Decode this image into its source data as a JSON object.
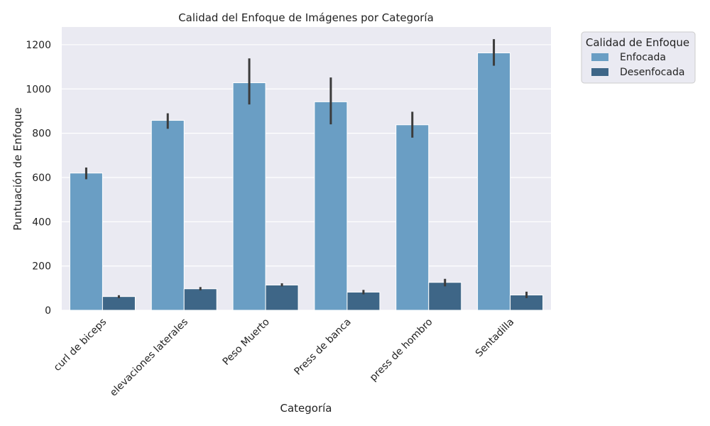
{
  "chart_data": {
    "type": "bar",
    "title": "Calidad del Enfoque de Imágenes por Categoría",
    "xlabel": "Categoría",
    "ylabel": "Puntuación de Enfoque",
    "categories": [
      "curl de biceps",
      "elevaciones laterales",
      "Peso Muerto",
      "Press de banca",
      "press de hombro",
      "Sentadilla"
    ],
    "ylim": [
      0,
      1280
    ],
    "yticks": [
      0,
      200,
      400,
      600,
      800,
      1000,
      1200
    ],
    "grid": true,
    "legend": {
      "title": "Calidad de Enfoque",
      "placement": "outside-top-right"
    },
    "series": [
      {
        "name": "Enfocada",
        "color": "#6a9ec4",
        "values": [
          620,
          858,
          1028,
          942,
          838,
          1163
        ],
        "err_low": [
          592,
          820,
          930,
          840,
          780,
          1105
        ],
        "err_high": [
          645,
          890,
          1138,
          1052,
          897,
          1225
        ]
      },
      {
        "name": "Desenfocada",
        "color": "#3e6687",
        "values": [
          62,
          97,
          114,
          82,
          126,
          69
        ],
        "err_low": [
          55,
          90,
          108,
          72,
          108,
          55
        ],
        "err_high": [
          68,
          105,
          122,
          92,
          142,
          84
        ]
      }
    ]
  }
}
